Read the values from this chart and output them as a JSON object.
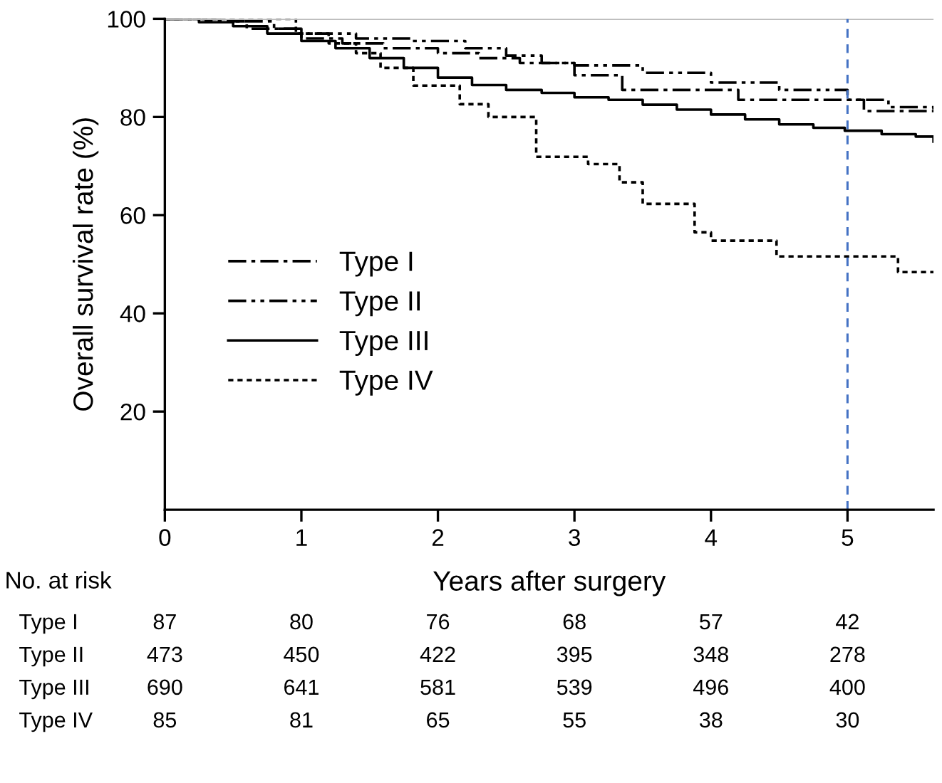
{
  "chart_data": {
    "type": "step",
    "xlabel": "Years after surgery",
    "ylabel": "Overall survival rate (%)",
    "xlim": [
      0,
      5.63
    ],
    "ylim": [
      0,
      100
    ],
    "xticks": [
      0,
      1,
      2,
      3,
      4,
      5
    ],
    "yticks": [
      20,
      40,
      60,
      80,
      100
    ],
    "grid": false,
    "legend": "center left",
    "series": [
      {
        "name": "Type I",
        "color": "#000000",
        "line_style": "dashdot",
        "x": [
          0,
          0.3,
          0.6,
          1.0,
          1.3,
          1.6,
          2.0,
          2.3,
          2.6,
          3.0,
          3.35,
          3.8,
          4.2,
          4.6,
          5.12,
          5.63
        ],
        "values": [
          100,
          99.5,
          98,
          96,
          95,
          94,
          93,
          92,
          91,
          88.5,
          85.5,
          85.5,
          83.5,
          83.5,
          81.2,
          81
        ]
      },
      {
        "name": "Type II",
        "color": "#000000",
        "line_style": "dashdotdot",
        "x": [
          0,
          0.4,
          0.8,
          1.0,
          1.4,
          1.8,
          2.2,
          2.5,
          2.76,
          3.0,
          3.5,
          4.0,
          4.5,
          5.0,
          5.3,
          5.63
        ],
        "values": [
          100,
          99.5,
          98,
          97,
          96,
          95.5,
          94,
          92.5,
          91,
          90.5,
          89,
          87,
          85.5,
          83.5,
          82,
          80.9
        ]
      },
      {
        "name": "Type III",
        "color": "#000000",
        "line_style": "solid",
        "x": [
          0,
          0.25,
          0.5,
          0.75,
          1.0,
          1.25,
          1.5,
          1.75,
          2.0,
          2.25,
          2.5,
          2.76,
          3.0,
          3.25,
          3.5,
          3.75,
          4.0,
          4.25,
          4.5,
          4.75,
          4.98,
          5.25,
          5.5,
          5.63
        ],
        "values": [
          100,
          99.3,
          98.5,
          97,
          95.5,
          94,
          92,
          90,
          88,
          86.5,
          85.5,
          84.9,
          84,
          83.5,
          82.5,
          81.5,
          80.5,
          79.5,
          78.5,
          77.8,
          77.2,
          76.5,
          76,
          75
        ]
      },
      {
        "name": "Type IV",
        "color": "#000000",
        "line_style": "dotted",
        "x": [
          0,
          0.96,
          1.2,
          1.4,
          1.58,
          1.82,
          2.16,
          2.37,
          2.72,
          3.1,
          3.33,
          3.5,
          3.88,
          4.0,
          4.48,
          5.37,
          5.63
        ],
        "values": [
          100,
          97,
          95,
          93,
          90,
          86.4,
          82.6,
          80,
          71.9,
          70.4,
          66.7,
          62.3,
          56.5,
          54.8,
          51.6,
          48.4,
          48.4
        ]
      }
    ],
    "ref_lines": [
      {
        "axis": "y",
        "value": 100,
        "color": "#bbbbbb",
        "line_style": "solid"
      },
      {
        "axis": "x",
        "value": 5,
        "color": "#4472c4",
        "line_style": "dashed"
      }
    ],
    "annotations": [
      "No. at risk",
      "Type I",
      "87",
      "80",
      "76",
      "68",
      "57",
      "42",
      "Type II",
      "473",
      "450",
      "422",
      "395",
      "348",
      "278",
      "Type III",
      "690",
      "641",
      "581",
      "539",
      "496",
      "400",
      "Type IV",
      "85",
      "81",
      "65",
      "55",
      "38",
      "30"
    ]
  }
}
